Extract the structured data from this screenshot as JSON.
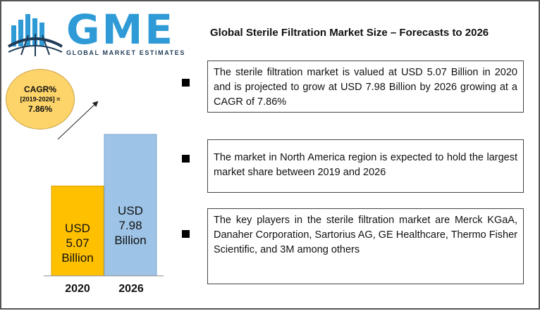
{
  "logo": {
    "name": "GME",
    "tagline": "GLOBAL MARKET ESTIMATES",
    "colors": {
      "primary": "#2f9bd6",
      "dark": "#1f3b57"
    }
  },
  "title": "Global Sterile Filtration Market Size – Forecasts to 2026",
  "cagr": {
    "label": "CAGR%",
    "period": "[2019-2026] =",
    "value": "7.86%",
    "color": "#fcd469"
  },
  "chart_data": {
    "type": "bar",
    "categories": [
      "2020",
      "2026"
    ],
    "values": [
      5.07,
      7.98
    ],
    "value_labels": [
      [
        "USD",
        "5.07",
        "Billion"
      ],
      [
        "USD",
        "7.98",
        "Billion"
      ]
    ],
    "colors": [
      "#ffc000",
      "#9dc3e6"
    ],
    "ylim": [
      0,
      10.8
    ],
    "title": "",
    "xlabel": "",
    "ylabel": ""
  },
  "points": [
    {
      "text": "The sterile filtration market is valued at USD 5.07 Billion in 2020 and is projected to grow at USD 7.98 Billion by 2026 growing at a CAGR of 7.86%"
    },
    {
      "text": "The market in North America region is expected to hold the largest market share between 2019 and 2026"
    },
    {
      "text": "The key players in the sterile filtration market are Merck KGaA, Danaher Corporation, Sartorius AG, GE Healthcare, Thermo Fisher Scientific, and 3M among others"
    }
  ]
}
